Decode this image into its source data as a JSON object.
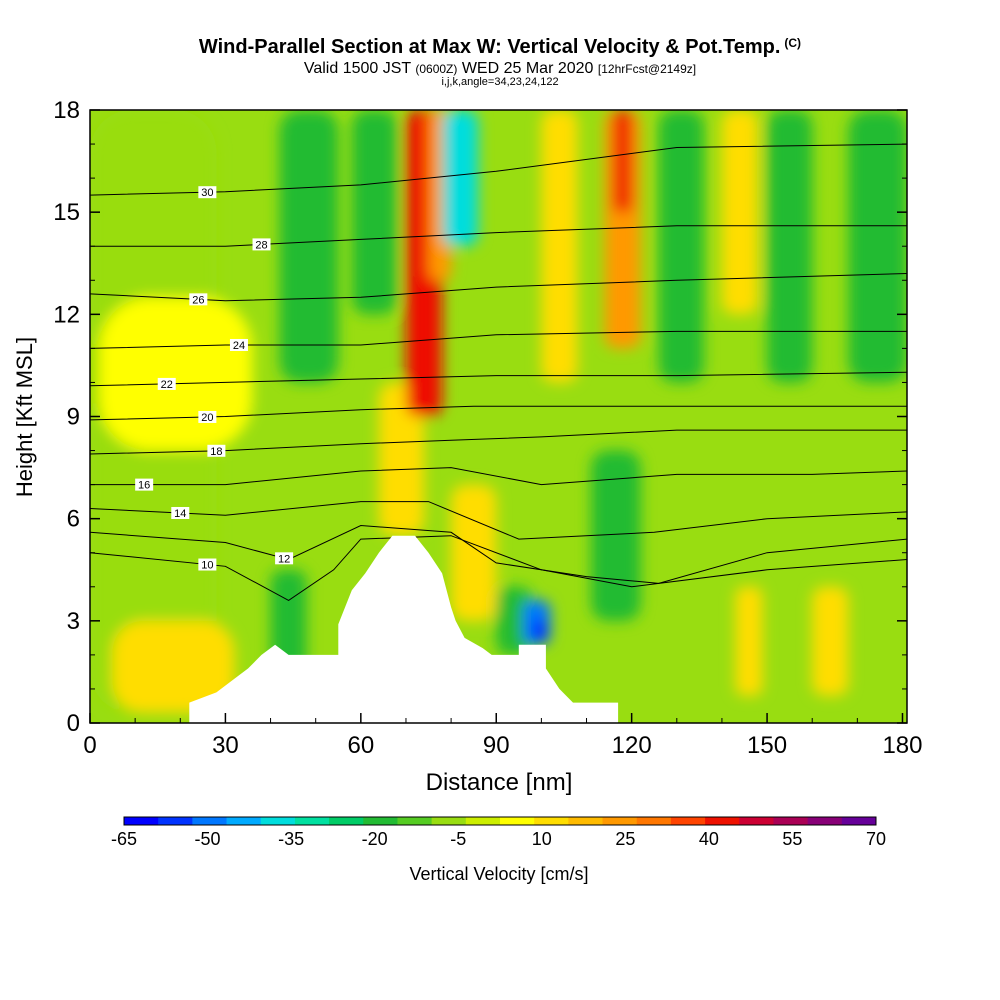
{
  "header": {
    "title": "Wind-Parallel Section at Max W: Vertical Velocity & Pot.Temp.",
    "title_mark": "(C)",
    "valid_prefix": "Valid 1500 JST",
    "valid_utc": "(0600Z)",
    "valid_date": "WED 25 Mar 2020",
    "forecast_tag": "[12hrFcst@2149z]",
    "indices": "i,j,k,angle=34,23,24,122"
  },
  "chart_data": {
    "type": "heatmap",
    "xlabel": "Distance [nm]",
    "ylabel": "Height [Kft MSL]",
    "xlim": [
      0,
      181
    ],
    "ylim": [
      0,
      18
    ],
    "x_ticks": [
      0,
      30,
      60,
      90,
      120,
      150,
      180
    ],
    "y_ticks": [
      0,
      3,
      6,
      9,
      12,
      15,
      18
    ],
    "terrain": [
      [
        22,
        0.6
      ],
      [
        28,
        0.9
      ],
      [
        32,
        1.3
      ],
      [
        35,
        1.6
      ],
      [
        38,
        2.0
      ],
      [
        41,
        2.3
      ],
      [
        44,
        2.0
      ],
      [
        55,
        2.0
      ],
      [
        55,
        2.9
      ],
      [
        58,
        3.9
      ],
      [
        61,
        4.4
      ],
      [
        64,
        5.0
      ],
      [
        67,
        5.5
      ],
      [
        72,
        5.5
      ],
      [
        75,
        5.0
      ],
      [
        78,
        4.4
      ],
      [
        80,
        3.4
      ],
      [
        81,
        3.0
      ],
      [
        83,
        2.5
      ],
      [
        87,
        2.2
      ],
      [
        89,
        2.0
      ],
      [
        95,
        2.0
      ],
      [
        95,
        2.3
      ],
      [
        101,
        2.3
      ],
      [
        101,
        1.6
      ],
      [
        104,
        1.0
      ],
      [
        107,
        0.6
      ],
      [
        117,
        0.6
      ]
    ],
    "velocity_cells": [
      {
        "x": [
          0,
          28
        ],
        "y": [
          0.3,
          18
        ],
        "w": -5
      },
      {
        "x": [
          2,
          36
        ],
        "y": [
          8,
          12.5
        ],
        "w": 5
      },
      {
        "x": [
          5,
          32
        ],
        "y": [
          0.3,
          3.0
        ],
        "w": 10
      },
      {
        "x": [
          40,
          48
        ],
        "y": [
          1.5,
          4.5
        ],
        "w": -20
      },
      {
        "x": [
          42,
          55
        ],
        "y": [
          10,
          18
        ],
        "w": -20
      },
      {
        "x": [
          58,
          68
        ],
        "y": [
          12,
          18
        ],
        "w": -20
      },
      {
        "x": [
          64,
          74
        ],
        "y": [
          5.5,
          10
        ],
        "w": 10
      },
      {
        "x": [
          70,
          78
        ],
        "y": [
          9,
          18
        ],
        "w": 40
      },
      {
        "x": [
          75,
          80
        ],
        "y": [
          13,
          18
        ],
        "w": 25
      },
      {
        "x": [
          78,
          86
        ],
        "y": [
          14,
          18
        ],
        "w": -35
      },
      {
        "x": [
          80,
          90
        ],
        "y": [
          3,
          7
        ],
        "w": 10
      },
      {
        "x": [
          90,
          98
        ],
        "y": [
          2,
          4
        ],
        "w": -20
      },
      {
        "x": [
          96,
          102
        ],
        "y": [
          2.3,
          3.6
        ],
        "w": -50
      },
      {
        "x": [
          98,
          101
        ],
        "y": [
          2.4,
          3.0
        ],
        "w": -65
      },
      {
        "x": [
          100,
          108
        ],
        "y": [
          10,
          18
        ],
        "w": 10
      },
      {
        "x": [
          111,
          122
        ],
        "y": [
          3,
          8
        ],
        "w": -20
      },
      {
        "x": [
          114,
          122
        ],
        "y": [
          11,
          18
        ],
        "w": 25
      },
      {
        "x": [
          116,
          120
        ],
        "y": [
          15,
          18
        ],
        "w": 40
      },
      {
        "x": [
          126,
          136
        ],
        "y": [
          10,
          18
        ],
        "w": -20
      },
      {
        "x": [
          140,
          148
        ],
        "y": [
          12,
          18
        ],
        "w": 10
      },
      {
        "x": [
          143,
          149
        ],
        "y": [
          0.8,
          4.0
        ],
        "w": 10
      },
      {
        "x": [
          150,
          160
        ],
        "y": [
          10,
          18
        ],
        "w": -20
      },
      {
        "x": [
          160,
          168
        ],
        "y": [
          0.8,
          4.0
        ],
        "w": 10
      },
      {
        "x": [
          168,
          181
        ],
        "y": [
          10,
          18
        ],
        "w": -20
      }
    ],
    "isentropes": [
      {
        "theta": 10,
        "label_x": 26,
        "points": [
          [
            0,
            5.0
          ],
          [
            30,
            4.6
          ],
          [
            44,
            3.6
          ],
          [
            54,
            4.5
          ],
          [
            60,
            5.4
          ],
          [
            80,
            5.5
          ],
          [
            100,
            4.5
          ],
          [
            120,
            4.0
          ],
          [
            150,
            4.5
          ],
          [
            181,
            4.8
          ]
        ]
      },
      {
        "theta": 12,
        "label_x": 43,
        "points": [
          [
            0,
            5.6
          ],
          [
            30,
            5.3
          ],
          [
            44,
            4.8
          ],
          [
            60,
            5.8
          ],
          [
            80,
            5.6
          ],
          [
            90,
            4.7
          ],
          [
            110,
            4.3
          ],
          [
            126,
            4.1
          ],
          [
            150,
            5.0
          ],
          [
            181,
            5.4
          ]
        ]
      },
      {
        "theta": 14,
        "label_x": 20,
        "points": [
          [
            0,
            6.3
          ],
          [
            30,
            6.1
          ],
          [
            60,
            6.5
          ],
          [
            75,
            6.5
          ],
          [
            95,
            5.4
          ],
          [
            125,
            5.6
          ],
          [
            150,
            6.0
          ],
          [
            181,
            6.2
          ]
        ]
      },
      {
        "theta": 16,
        "label_x": 12,
        "points": [
          [
            0,
            7.0
          ],
          [
            30,
            7.0
          ],
          [
            60,
            7.4
          ],
          [
            80,
            7.5
          ],
          [
            100,
            7.0
          ],
          [
            130,
            7.3
          ],
          [
            160,
            7.3
          ],
          [
            181,
            7.4
          ]
        ]
      },
      {
        "theta": 18,
        "label_x": 28,
        "points": [
          [
            0,
            7.9
          ],
          [
            30,
            8.0
          ],
          [
            60,
            8.2
          ],
          [
            80,
            8.3
          ],
          [
            100,
            8.4
          ],
          [
            130,
            8.6
          ],
          [
            181,
            8.6
          ]
        ]
      },
      {
        "theta": 20,
        "label_x": 26,
        "points": [
          [
            0,
            8.9
          ],
          [
            30,
            9.0
          ],
          [
            60,
            9.2
          ],
          [
            85,
            9.3
          ],
          [
            110,
            9.3
          ],
          [
            140,
            9.3
          ],
          [
            181,
            9.3
          ]
        ]
      },
      {
        "theta": 22,
        "label_x": 17,
        "points": [
          [
            0,
            9.9
          ],
          [
            30,
            10.0
          ],
          [
            60,
            10.1
          ],
          [
            90,
            10.2
          ],
          [
            130,
            10.2
          ],
          [
            181,
            10.3
          ]
        ]
      },
      {
        "theta": 24,
        "label_x": 33,
        "points": [
          [
            0,
            11.0
          ],
          [
            30,
            11.1
          ],
          [
            60,
            11.1
          ],
          [
            90,
            11.4
          ],
          [
            130,
            11.5
          ],
          [
            181,
            11.5
          ]
        ]
      },
      {
        "theta": 26,
        "label_x": 24,
        "points": [
          [
            0,
            12.6
          ],
          [
            30,
            12.4
          ],
          [
            60,
            12.5
          ],
          [
            90,
            12.8
          ],
          [
            130,
            13.0
          ],
          [
            181,
            13.2
          ]
        ]
      },
      {
        "theta": 28,
        "label_x": 38,
        "points": [
          [
            0,
            14.0
          ],
          [
            30,
            14.0
          ],
          [
            60,
            14.2
          ],
          [
            90,
            14.4
          ],
          [
            130,
            14.6
          ],
          [
            181,
            14.6
          ]
        ]
      },
      {
        "theta": 30,
        "label_x": 26,
        "points": [
          [
            0,
            15.5
          ],
          [
            30,
            15.6
          ],
          [
            60,
            15.8
          ],
          [
            90,
            16.2
          ],
          [
            130,
            16.9
          ],
          [
            181,
            17.0
          ]
        ]
      }
    ],
    "colorbar": {
      "label": "Vertical Velocity [cm/s]",
      "tick_labels": [
        "-65",
        "-50",
        "-35",
        "-20",
        "-5",
        "10",
        "25",
        "40",
        "55",
        "70"
      ],
      "colors": [
        "#0000ff",
        "#0033ff",
        "#0077ff",
        "#00aaff",
        "#00dddd",
        "#00e0a0",
        "#00cc66",
        "#22bb33",
        "#55cc22",
        "#99dd11",
        "#ccee00",
        "#ffff00",
        "#ffdd00",
        "#ffbb00",
        "#ff9900",
        "#ff7700",
        "#ff4400",
        "#ee1100",
        "#cc0033",
        "#aa0055",
        "#880077",
        "#660099"
      ]
    }
  }
}
